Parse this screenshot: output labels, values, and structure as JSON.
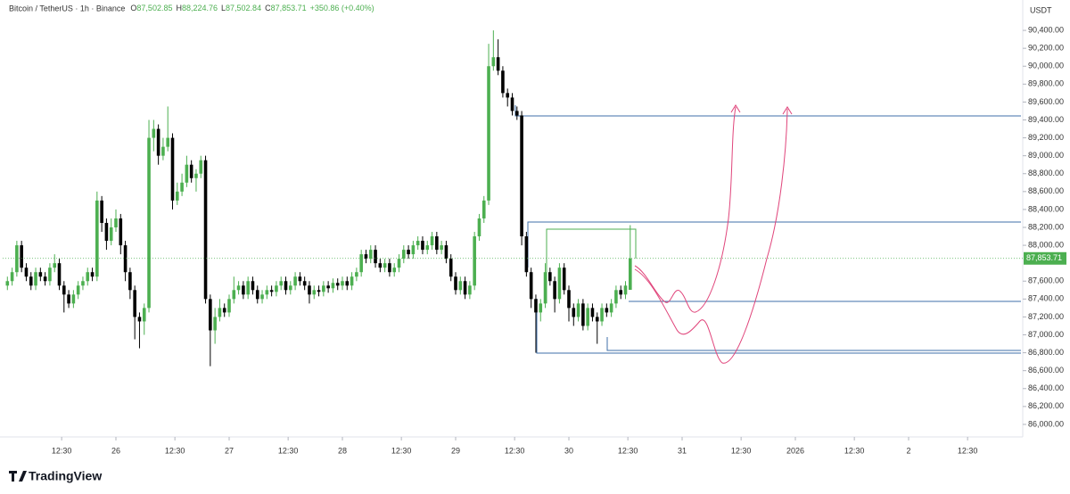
{
  "chart_data": {
    "type": "candlestick",
    "title": "Bitcoin / TetherUS · 1h · Binance",
    "ohlc_readout": [
      {
        "label": "O",
        "text": "87,502.85"
      },
      {
        "label": "H",
        "text": "88,224.76"
      },
      {
        "label": "L",
        "text": "87,502.84"
      },
      {
        "label": "C",
        "text": "87,853.71"
      }
    ],
    "change": "+350.86 (+0.40%)",
    "y_label": "USDT",
    "last_price_label": "87,853.71",
    "up_color": "#4caf50",
    "down_color": "#000000",
    "grid": false,
    "xlim": [
      0,
      216
    ],
    "xticks": [
      {
        "value": 12.5,
        "label": "12:30"
      },
      {
        "value": 24,
        "label": "26"
      },
      {
        "value": 36.5,
        "label": "12:30"
      },
      {
        "value": 48,
        "label": "27"
      },
      {
        "value": 60.5,
        "label": "12:30"
      },
      {
        "value": 72,
        "label": "28"
      },
      {
        "value": 84.5,
        "label": "12:30"
      },
      {
        "value": 96,
        "label": "29"
      },
      {
        "value": 108.5,
        "label": "12:30"
      },
      {
        "value": 120,
        "label": "30"
      },
      {
        "value": 132.5,
        "label": "12:30"
      },
      {
        "value": 144,
        "label": "31"
      },
      {
        "value": 156.5,
        "label": "12:30"
      },
      {
        "value": 168,
        "label": "2026"
      },
      {
        "value": 180.5,
        "label": "12:30"
      },
      {
        "value": 192,
        "label": "2"
      },
      {
        "value": 204.5,
        "label": "12:30"
      }
    ],
    "ylim": [
      85860,
      90560
    ],
    "yticks": [
      {
        "value": 86000,
        "label": "86,000.00"
      },
      {
        "value": 86200,
        "label": "86,200.00"
      },
      {
        "value": 86400,
        "label": "86,400.00"
      },
      {
        "value": 86600,
        "label": "86,600.00"
      },
      {
        "value": 86800,
        "label": "86,800.00"
      },
      {
        "value": 87000,
        "label": "87,000.00"
      },
      {
        "value": 87200,
        "label": "87,200.00"
      },
      {
        "value": 87400,
        "label": "87,400.00"
      },
      {
        "value": 87600,
        "label": "87,600.00"
      },
      {
        "value": 88000,
        "label": "88,000.00"
      },
      {
        "value": 88200,
        "label": "88,200.00"
      },
      {
        "value": 88400,
        "label": "88,400.00"
      },
      {
        "value": 88600,
        "label": "88,600.00"
      },
      {
        "value": 88800,
        "label": "88,800.00"
      },
      {
        "value": 89000,
        "label": "89,000.00"
      },
      {
        "value": 89200,
        "label": "89,200.00"
      },
      {
        "value": 89400,
        "label": "89,400.00"
      },
      {
        "value": 89600,
        "label": "89,600.00"
      },
      {
        "value": 89800,
        "label": "89,800.00"
      },
      {
        "value": 90000,
        "label": "90,000.00"
      },
      {
        "value": 90200,
        "label": "90,200.00"
      },
      {
        "value": 90400,
        "label": "90,400.00"
      }
    ],
    "x": [
      1,
      2,
      3,
      4,
      5,
      6,
      7,
      8,
      9,
      10,
      11,
      12,
      13,
      14,
      15,
      16,
      17,
      18,
      19,
      20,
      21,
      22,
      23,
      24,
      25,
      26,
      27,
      28,
      29,
      30,
      31,
      32,
      33,
      34,
      35,
      36,
      37,
      38,
      39,
      40,
      41,
      42,
      43,
      44,
      45,
      46,
      47,
      48,
      49,
      50,
      51,
      52,
      53,
      54,
      55,
      56,
      57,
      58,
      59,
      60,
      61,
      62,
      63,
      64,
      65,
      66,
      67,
      68,
      69,
      70,
      71,
      72,
      73,
      74,
      75,
      76,
      77,
      78,
      79,
      80,
      81,
      82,
      83,
      84,
      85,
      86,
      87,
      88,
      89,
      90,
      91,
      92,
      93,
      94,
      95,
      96,
      97,
      98,
      99,
      100,
      101,
      102,
      103,
      104,
      105,
      106,
      107,
      108,
      109,
      110,
      111,
      112,
      113,
      114,
      115,
      116,
      117,
      118,
      119,
      120,
      121,
      122,
      123,
      124,
      125,
      126,
      127,
      128,
      129,
      130,
      131,
      132,
      133
    ],
    "ohlc": [
      [
        87550,
        87650,
        87500,
        87600
      ],
      [
        87600,
        87750,
        87550,
        87700
      ],
      [
        87700,
        88050,
        87650,
        88000
      ],
      [
        88000,
        88050,
        87700,
        87750
      ],
      [
        87750,
        87800,
        87600,
        87650
      ],
      [
        87650,
        87700,
        87500,
        87550
      ],
      [
        87550,
        87750,
        87500,
        87700
      ],
      [
        87700,
        87750,
        87600,
        87650
      ],
      [
        87650,
        87700,
        87550,
        87600
      ],
      [
        87600,
        87800,
        87550,
        87750
      ],
      [
        87750,
        87900,
        87700,
        87800
      ],
      [
        87800,
        87850,
        87500,
        87550
      ],
      [
        87550,
        87600,
        87250,
        87450
      ],
      [
        87450,
        87500,
        87300,
        87350
      ],
      [
        87350,
        87500,
        87300,
        87450
      ],
      [
        87450,
        87600,
        87400,
        87550
      ],
      [
        87550,
        87650,
        87500,
        87600
      ],
      [
        87600,
        87750,
        87550,
        87700
      ],
      [
        87700,
        87750,
        87600,
        87650
      ],
      [
        87650,
        88600,
        87600,
        88500
      ],
      [
        88500,
        88550,
        88150,
        88250
      ],
      [
        88250,
        88300,
        87950,
        88050
      ],
      [
        88050,
        88300,
        88000,
        88200
      ],
      [
        88200,
        88400,
        88150,
        88300
      ],
      [
        88300,
        88350,
        87900,
        88000
      ],
      [
        88000,
        88050,
        87600,
        87700
      ],
      [
        87700,
        87750,
        87400,
        87500
      ],
      [
        87500,
        87550,
        86950,
        87200
      ],
      [
        87200,
        87250,
        86850,
        87150
      ],
      [
        87150,
        87350,
        87000,
        87300
      ],
      [
        87300,
        89400,
        87250,
        89200
      ],
      [
        89200,
        89400,
        89050,
        89300
      ],
      [
        89300,
        89350,
        88900,
        89000
      ],
      [
        89000,
        89200,
        88950,
        89100
      ],
      [
        89100,
        89550,
        89050,
        89200
      ],
      [
        89200,
        89250,
        88400,
        88500
      ],
      [
        88500,
        88700,
        88450,
        88600
      ],
      [
        88600,
        88800,
        88550,
        88700
      ],
      [
        88700,
        89000,
        88650,
        88900
      ],
      [
        88900,
        88950,
        88700,
        88750
      ],
      [
        88750,
        88850,
        88600,
        88800
      ],
      [
        88800,
        89000,
        88750,
        88950
      ],
      [
        88950,
        89000,
        87350,
        87400
      ],
      [
        87400,
        87450,
        86650,
        87050
      ],
      [
        87050,
        87300,
        86900,
        87200
      ],
      [
        87200,
        87400,
        87150,
        87300
      ],
      [
        87300,
        87350,
        87200,
        87250
      ],
      [
        87250,
        87450,
        87200,
        87400
      ],
      [
        87400,
        87650,
        87350,
        87500
      ],
      [
        87500,
        87600,
        87450,
        87550
      ],
      [
        87550,
        87600,
        87400,
        87450
      ],
      [
        87450,
        87650,
        87400,
        87600
      ],
      [
        87600,
        87650,
        87450,
        87500
      ],
      [
        87500,
        87550,
        87350,
        87400
      ],
      [
        87400,
        87500,
        87350,
        87450
      ],
      [
        87450,
        87550,
        87400,
        87500
      ],
      [
        87500,
        87550,
        87430,
        87480
      ],
      [
        87480,
        87600,
        87430,
        87550
      ],
      [
        87550,
        87650,
        87500,
        87600
      ],
      [
        87600,
        87650,
        87450,
        87500
      ],
      [
        87500,
        87600,
        87450,
        87550
      ],
      [
        87550,
        87700,
        87500,
        87650
      ],
      [
        87650,
        87700,
        87550,
        87600
      ],
      [
        87600,
        87650,
        87500,
        87550
      ],
      [
        87550,
        87600,
        87350,
        87450
      ],
      [
        87450,
        87550,
        87400,
        87500
      ],
      [
        87500,
        87550,
        87430,
        87480
      ],
      [
        87480,
        87600,
        87430,
        87550
      ],
      [
        87550,
        87600,
        87470,
        87520
      ],
      [
        87520,
        87630,
        87470,
        87580
      ],
      [
        87580,
        87630,
        87500,
        87550
      ],
      [
        87550,
        87650,
        87500,
        87600
      ],
      [
        87600,
        87650,
        87500,
        87550
      ],
      [
        87550,
        87700,
        87500,
        87650
      ],
      [
        87650,
        87750,
        87600,
        87700
      ],
      [
        87700,
        87950,
        87650,
        87900
      ],
      [
        87900,
        87950,
        87800,
        87850
      ],
      [
        87850,
        88000,
        87800,
        87950
      ],
      [
        87950,
        88000,
        87750,
        87800
      ],
      [
        87800,
        87850,
        87700,
        87750
      ],
      [
        87750,
        87850,
        87700,
        87800
      ],
      [
        87800,
        87850,
        87650,
        87700
      ],
      [
        87700,
        87800,
        87650,
        87750
      ],
      [
        87750,
        87900,
        87700,
        87850
      ],
      [
        87850,
        88000,
        87800,
        87950
      ],
      [
        87950,
        88000,
        87850,
        87900
      ],
      [
        87900,
        88050,
        87850,
        88000
      ],
      [
        88000,
        88100,
        87950,
        88050
      ],
      [
        88050,
        88100,
        87900,
        87950
      ],
      [
        87950,
        88050,
        87900,
        88000
      ],
      [
        88000,
        88150,
        87950,
        88100
      ],
      [
        88100,
        88150,
        87900,
        87950
      ],
      [
        87950,
        88050,
        87900,
        88000
      ],
      [
        88000,
        88050,
        87800,
        87850
      ],
      [
        87850,
        87900,
        87600,
        87650
      ],
      [
        87650,
        87700,
        87450,
        87500
      ],
      [
        87500,
        87650,
        87450,
        87600
      ],
      [
        87600,
        87650,
        87400,
        87450
      ],
      [
        87450,
        87600,
        87400,
        87550
      ],
      [
        87550,
        88150,
        87500,
        88100
      ],
      [
        88100,
        88350,
        88050,
        88300
      ],
      [
        88300,
        88550,
        88250,
        88500
      ],
      [
        88500,
        90250,
        88450,
        90000
      ],
      [
        90000,
        90400,
        89950,
        90100
      ],
      [
        90100,
        90300,
        89900,
        89950
      ],
      [
        89950,
        90000,
        89650,
        89700
      ],
      [
        89700,
        89750,
        89550,
        89650
      ],
      [
        89650,
        89700,
        89450,
        89500
      ],
      [
        89500,
        89550,
        89400,
        89450
      ],
      [
        89450,
        89500,
        88000,
        88100
      ],
      [
        88100,
        88150,
        87650,
        87700
      ],
      [
        87700,
        87750,
        87300,
        87400
      ],
      [
        87400,
        87450,
        86800,
        87250
      ],
      [
        87250,
        87400,
        87150,
        87350
      ],
      [
        87350,
        87800,
        87300,
        87700
      ],
      [
        87700,
        87750,
        87550,
        87600
      ],
      [
        87600,
        87650,
        87250,
        87400
      ],
      [
        87400,
        87800,
        87350,
        87750
      ],
      [
        87750,
        87800,
        87450,
        87500
      ],
      [
        87500,
        87550,
        87150,
        87300
      ],
      [
        87300,
        87350,
        87100,
        87200
      ],
      [
        87200,
        87400,
        87150,
        87350
      ],
      [
        87350,
        87400,
        87050,
        87100
      ],
      [
        87100,
        87350,
        87050,
        87300
      ],
      [
        87300,
        87350,
        87150,
        87200
      ],
      [
        87200,
        87250,
        86900,
        87150
      ],
      [
        87150,
        87350,
        87100,
        87300
      ],
      [
        87300,
        87350,
        87200,
        87250
      ],
      [
        87250,
        87400,
        87200,
        87350
      ],
      [
        87350,
        87550,
        87300,
        87500
      ],
      [
        87500,
        87550,
        87400,
        87450
      ],
      [
        87450,
        87600,
        87400,
        87550
      ],
      [
        87502.85,
        88224.76,
        87502.84,
        87853.71
      ]
    ]
  },
  "footer": {
    "brand": "TradingView"
  }
}
